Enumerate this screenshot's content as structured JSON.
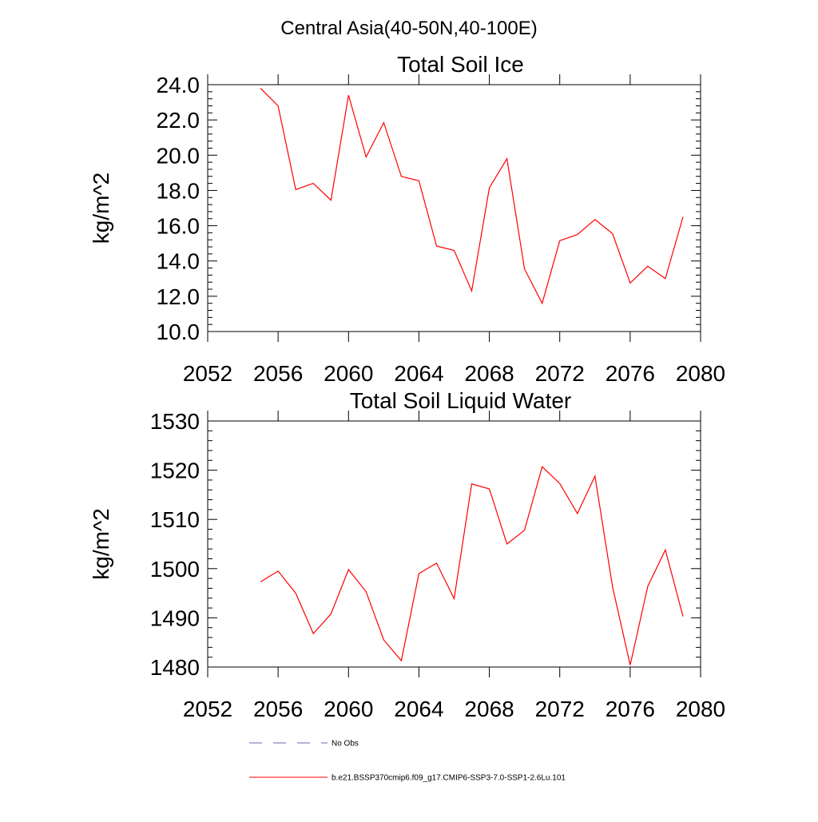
{
  "figure_title": "Central Asia(40-50N,40-100E)",
  "chart_data": [
    {
      "type": "line",
      "title": "Total Soil Ice",
      "xlabel": "",
      "ylabel": "kg/m^2",
      "xlim": [
        2052,
        2080
      ],
      "ylim": [
        10,
        24
      ],
      "xticks": [
        2052,
        2056,
        2060,
        2064,
        2068,
        2072,
        2076,
        2080
      ],
      "xtick_labels": [
        "2052",
        "2056",
        "2060",
        "2064",
        "2068",
        "2072",
        "2076",
        "2080"
      ],
      "yticks": [
        10,
        12,
        14,
        16,
        18,
        20,
        22,
        24
      ],
      "ytick_labels": [
        "10.0",
        "12.0",
        "14.0",
        "16.0",
        "18.0",
        "20.0",
        "22.0",
        "24.0"
      ],
      "grid": false,
      "series": [
        {
          "color": "#ff0000",
          "x": [
            2055,
            2056,
            2057,
            2058,
            2059,
            2060,
            2061,
            2062,
            2063,
            2064,
            2065,
            2066,
            2067,
            2068,
            2069,
            2070,
            2071,
            2072,
            2073,
            2074,
            2075,
            2076,
            2077,
            2078,
            2079
          ],
          "values": [
            23.8,
            22.8,
            18.05,
            18.4,
            17.45,
            23.4,
            19.9,
            21.85,
            18.8,
            18.55,
            14.85,
            14.6,
            12.3,
            18.15,
            19.8,
            13.55,
            11.6,
            15.15,
            15.5,
            16.35,
            15.55,
            12.75,
            13.7,
            13.0,
            16.5
          ]
        }
      ]
    },
    {
      "type": "line",
      "title": "Total Soil Liquid Water",
      "xlabel": "",
      "ylabel": "kg/m^2",
      "xlim": [
        2052,
        2080
      ],
      "ylim": [
        1480,
        1530
      ],
      "xticks": [
        2052,
        2056,
        2060,
        2064,
        2068,
        2072,
        2076,
        2080
      ],
      "xtick_labels": [
        "2052",
        "2056",
        "2060",
        "2064",
        "2068",
        "2072",
        "2076",
        "2080"
      ],
      "yticks": [
        1480,
        1490,
        1500,
        1510,
        1520,
        1530
      ],
      "ytick_labels": [
        "1480",
        "1490",
        "1500",
        "1510",
        "1520",
        "1530"
      ],
      "grid": false,
      "series": [
        {
          "color": "#ff0000",
          "x": [
            2055,
            2056,
            2057,
            2058,
            2059,
            2060,
            2061,
            2062,
            2063,
            2064,
            2065,
            2066,
            2067,
            2068,
            2069,
            2070,
            2071,
            2072,
            2073,
            2074,
            2075,
            2076,
            2077,
            2078,
            2079
          ],
          "values": [
            1497.3,
            1499.5,
            1495.0,
            1486.8,
            1490.8,
            1499.8,
            1495.3,
            1485.5,
            1481.3,
            1499.0,
            1501.1,
            1493.9,
            1517.2,
            1516.2,
            1505.0,
            1507.8,
            1520.7,
            1517.3,
            1511.2,
            1518.8,
            1496.3,
            1480.4,
            1496.4,
            1503.8,
            1490.3
          ]
        }
      ]
    }
  ],
  "legend": {
    "placement": "bottom-center",
    "items": [
      {
        "label": "No Obs",
        "color": "#6a6aa8",
        "dash": "dashed"
      },
      {
        "label": "b.e21.BSSP370cmip6.f09_g17.CMIP6-SSP3-7.0-SSP1-2.6Lu.101",
        "color": "#ff0000",
        "dash": "solid"
      }
    ]
  }
}
